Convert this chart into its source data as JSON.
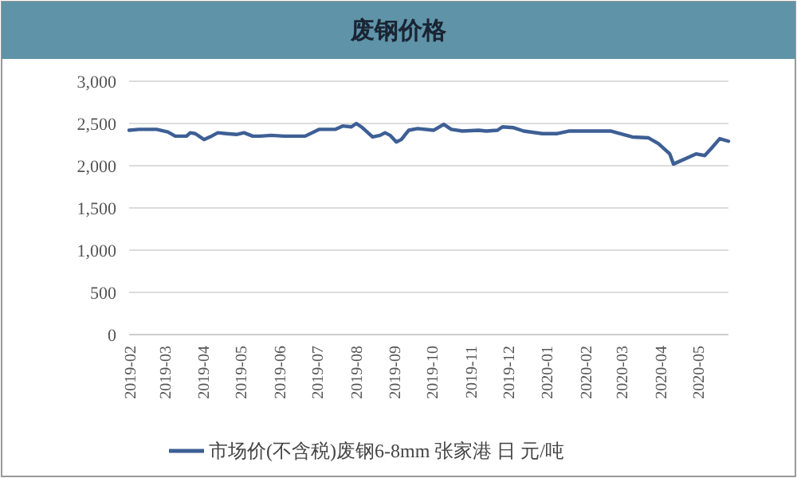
{
  "chart_data": {
    "type": "line",
    "title": "废钢价格",
    "x": [
      "2019-02-01",
      "2019-02-09",
      "2019-02-23",
      "2019-03-04",
      "2019-03-10",
      "2019-03-19",
      "2019-03-22",
      "2019-03-26",
      "2019-04-02",
      "2019-04-05",
      "2019-04-08",
      "2019-04-13",
      "2019-04-20",
      "2019-04-28",
      "2019-05-04",
      "2019-05-11",
      "2019-05-17",
      "2019-05-26",
      "2019-06-05",
      "2019-06-12",
      "2019-06-22",
      "2019-07-03",
      "2019-07-16",
      "2019-07-22",
      "2019-07-29",
      "2019-08-02",
      "2019-08-06",
      "2019-08-15",
      "2019-08-21",
      "2019-08-25",
      "2019-08-29",
      "2019-09-03",
      "2019-09-07",
      "2019-09-13",
      "2019-09-20",
      "2019-10-03",
      "2019-10-11",
      "2019-10-17",
      "2019-10-26",
      "2019-11-08",
      "2019-11-14",
      "2019-11-23",
      "2019-11-27",
      "2019-12-06",
      "2019-12-14",
      "2019-12-29",
      "2020-01-10",
      "2020-01-19",
      "2020-01-28",
      "2020-02-07",
      "2020-02-22",
      "2020-03-10",
      "2020-03-23",
      "2020-03-31",
      "2020-04-09",
      "2020-04-12",
      "2020-04-24",
      "2020-04-30",
      "2020-05-07",
      "2020-05-12",
      "2020-05-19",
      "2020-05-26"
    ],
    "series": [
      {
        "name": "市场价(不含税)废钢6-8mm 张家港 日 元/吨",
        "color": "#3d5f95",
        "values": [
          2420,
          2430,
          2430,
          2400,
          2350,
          2350,
          2390,
          2380,
          2310,
          2330,
          2350,
          2390,
          2380,
          2370,
          2390,
          2350,
          2350,
          2360,
          2350,
          2350,
          2350,
          2430,
          2430,
          2470,
          2460,
          2500,
          2460,
          2340,
          2360,
          2390,
          2360,
          2280,
          2310,
          2420,
          2440,
          2420,
          2490,
          2430,
          2410,
          2420,
          2410,
          2420,
          2460,
          2450,
          2410,
          2380,
          2380,
          2410,
          2410,
          2410,
          2410,
          2340,
          2330,
          2260,
          2140,
          2020,
          2100,
          2140,
          2120,
          2200,
          2320,
          2290
        ]
      }
    ],
    "xlim": [
      "2019-02-01",
      "2020-05-26"
    ],
    "xticks": [
      "2019-02",
      "2019-03",
      "2019-04",
      "2019-05",
      "2019-06",
      "2019-07",
      "2019-08",
      "2019-09",
      "2019-10",
      "2019-11",
      "2019-12",
      "2020-01",
      "2020-02",
      "2020-03",
      "2020-04",
      "2020-05"
    ],
    "ylim": [
      0,
      3000
    ],
    "yticks": [
      {
        "value": 0,
        "label": "0"
      },
      {
        "value": 500,
        "label": "500"
      },
      {
        "value": 1000,
        "label": "1,000"
      },
      {
        "value": 1500,
        "label": "1,500"
      },
      {
        "value": 2000,
        "label": "2,000"
      },
      {
        "value": 2500,
        "label": "2,500"
      },
      {
        "value": 3000,
        "label": "3,000"
      }
    ],
    "grid": "y",
    "legend": "bottom",
    "line_style": "solid"
  }
}
